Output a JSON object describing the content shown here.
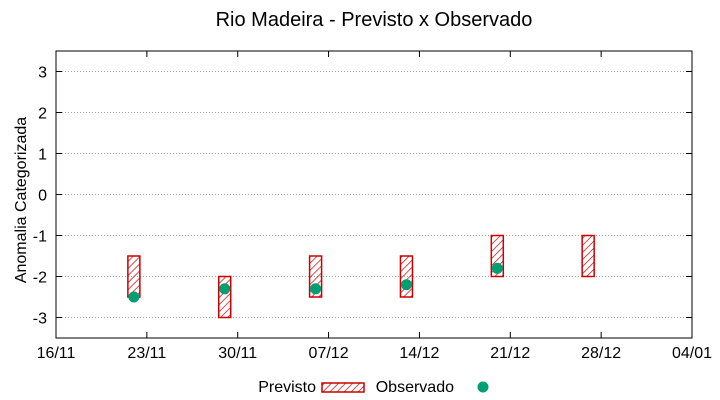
{
  "chart_data": {
    "type": "floating-bar-scatter",
    "title": "Rio Madeira - Previsto x Observado",
    "xlabel": "",
    "ylabel": "Anomalia Categorizada",
    "ylim": [
      -3.5,
      3.5
    ],
    "yticks": [
      -3,
      -2,
      -1,
      0,
      1,
      2,
      3
    ],
    "y_grid": true,
    "x_axis": {
      "type": "date",
      "min": "2025-11-16",
      "max": "2026-01-04",
      "ticks": [
        "2025-11-16",
        "2025-11-23",
        "2025-11-30",
        "2025-12-07",
        "2025-12-14",
        "2025-12-21",
        "2025-12-28",
        "2026-01-04"
      ],
      "tick_labels": [
        "16/11",
        "23/11",
        "30/11",
        "07/12",
        "14/12",
        "21/12",
        "28/12",
        "04/01"
      ]
    },
    "legend": {
      "placement": "bottom-center"
    },
    "series": [
      {
        "name": "Previsto",
        "kind": "range",
        "color": "#cc0000",
        "fill": "hatched",
        "points": [
          {
            "x": "2025-11-22",
            "low": -2.5,
            "high": -1.5
          },
          {
            "x": "2025-11-29",
            "low": -3.0,
            "high": -2.0
          },
          {
            "x": "2025-12-06",
            "low": -2.5,
            "high": -1.5
          },
          {
            "x": "2025-12-13",
            "low": -2.5,
            "high": -1.5
          },
          {
            "x": "2025-12-20",
            "low": -2.0,
            "high": -1.0
          },
          {
            "x": "2025-12-27",
            "low": -2.0,
            "high": -1.0
          }
        ]
      },
      {
        "name": "Observado",
        "kind": "point",
        "color": "#009e73",
        "points": [
          {
            "x": "2025-11-22",
            "y": -2.5
          },
          {
            "x": "2025-11-29",
            "y": -2.3
          },
          {
            "x": "2025-12-06",
            "y": -2.3
          },
          {
            "x": "2025-12-13",
            "y": -2.2
          },
          {
            "x": "2025-12-20",
            "y": -1.8
          }
        ]
      }
    ]
  }
}
